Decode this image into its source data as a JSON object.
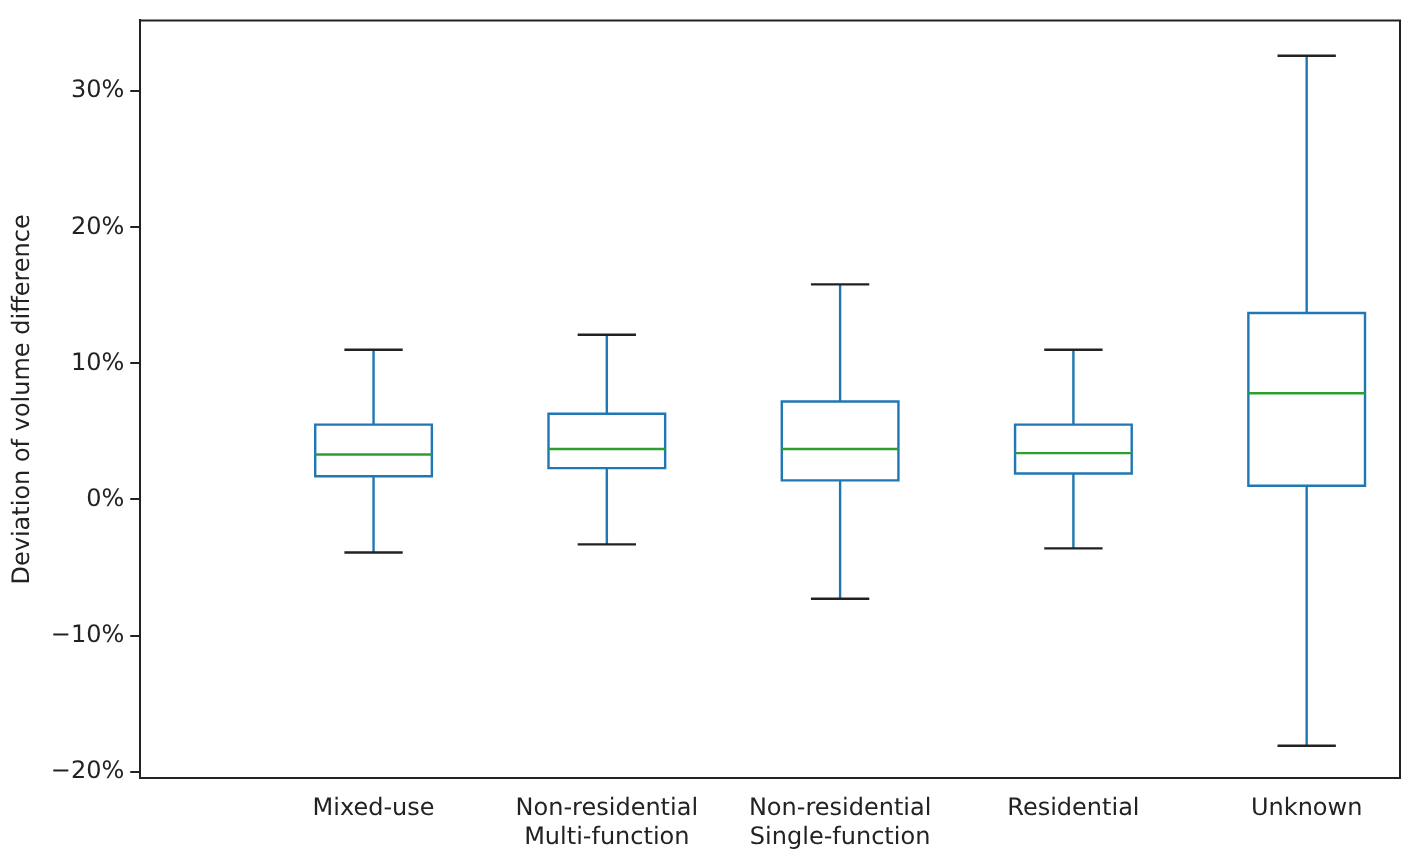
{
  "chart_data": {
    "type": "box",
    "ylabel": "Deviation of volume difference",
    "categories": [
      null,
      "Mixed-use",
      "Non-residential\nMulti-function",
      "Non-residential\nSingle-function",
      "Residential",
      "Unknown"
    ],
    "color": "#1f77b4",
    "boxes": [
      null,
      {
        "low": -3.9,
        "q1": 1.7,
        "median": 3.3,
        "q3": 5.5,
        "high": 11.0
      },
      {
        "low": -3.3,
        "q1": 2.3,
        "median": 3.7,
        "q3": 6.3,
        "high": 12.1
      },
      {
        "low": -7.3,
        "q1": 1.4,
        "median": 3.7,
        "q3": 7.2,
        "high": 15.8
      },
      {
        "low": -3.6,
        "q1": 1.9,
        "median": 3.4,
        "q3": 5.5,
        "high": 11.0
      },
      {
        "low": -18.1,
        "q1": 1.0,
        "median": 7.8,
        "q3": 13.7,
        "high": 32.6
      }
    ],
    "ylim": [
      -20.5,
      35.2
    ],
    "yticks": [
      {
        "value": -20,
        "label": "−20%"
      },
      {
        "value": -10,
        "label": "−10%"
      },
      {
        "value": 0,
        "label": "0%"
      },
      {
        "value": 10,
        "label": "10%"
      },
      {
        "value": 20,
        "label": "20%"
      },
      {
        "value": 30,
        "label": "30%"
      }
    ],
    "grid": false
  }
}
